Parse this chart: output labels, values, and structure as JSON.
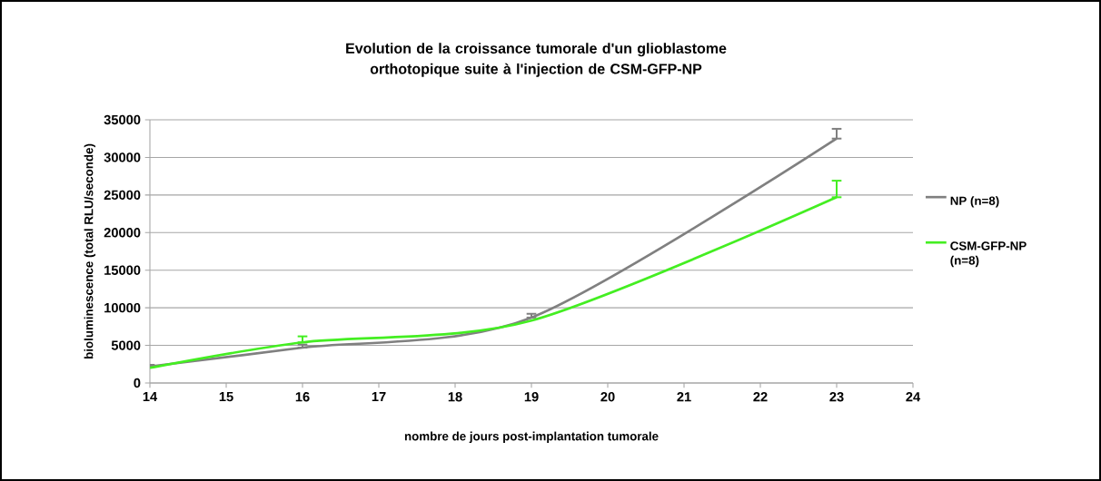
{
  "chart_data": {
    "type": "line",
    "title": "Evolution de la croissance tumorale d'un glioblastome orthotopique suite à l'injection de CSM-GFP-NP",
    "xlabel": "nombre de jours post-implantation tumorale",
    "ylabel": "bioluminescence (total RLU/seconde)",
    "x": [
      14,
      16,
      19,
      23
    ],
    "series": [
      {
        "name": "NP (n=8)",
        "color": "#808080",
        "values": [
          2200,
          4700,
          8700,
          32500
        ],
        "errors": [
          [
            2200,
            2400
          ],
          [
            4700,
            5100
          ],
          [
            8700,
            9200
          ],
          [
            32500,
            33800
          ]
        ]
      },
      {
        "name": "CSM-GFP-NP (n=8)",
        "color": "#44ee22",
        "values": [
          2000,
          5400,
          8300,
          24700
        ],
        "errors": [
          null,
          [
            5400,
            6200
          ],
          null,
          [
            24700,
            26900
          ]
        ]
      }
    ],
    "xlim": [
      14,
      24
    ],
    "xticks": [
      14,
      15,
      16,
      17,
      18,
      19,
      20,
      21,
      22,
      23,
      24
    ],
    "ylim": [
      0,
      35000
    ],
    "yticks": [
      0,
      5000,
      10000,
      15000,
      20000,
      25000,
      30000,
      35000
    ],
    "grid": "y",
    "legend": "right",
    "marker": "none",
    "line_style": "solid"
  }
}
